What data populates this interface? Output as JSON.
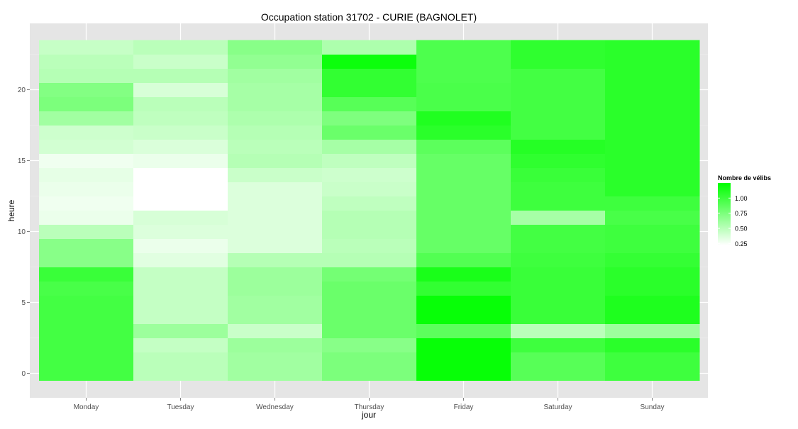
{
  "chart_data": {
    "type": "heatmap",
    "title": "Occupation station 31702 - CURIE (BAGNOLET)",
    "xlabel": "jour",
    "ylabel": "heure",
    "categories": [
      "Monday",
      "Tuesday",
      "Wednesday",
      "Thursday",
      "Friday",
      "Saturday",
      "Sunday"
    ],
    "y": [
      0,
      1,
      2,
      3,
      4,
      5,
      6,
      7,
      8,
      9,
      10,
      11,
      12,
      13,
      14,
      15,
      16,
      17,
      18,
      19,
      20,
      21,
      22,
      23
    ],
    "y_ticks": [
      0,
      5,
      10,
      15,
      20
    ],
    "ylim": [
      -0.5,
      23.5
    ],
    "grid": true,
    "colors": {
      "low": "#ffffff",
      "high": "#00ff00",
      "panel": "#e5e5e5",
      "gridline": "#ffffff"
    },
    "values": [
      [
        0.98,
        0.98,
        0.98,
        0.98,
        0.98,
        0.98,
        0.96,
        1.02,
        0.7,
        0.7,
        0.5,
        0.3,
        0.28,
        0.3,
        0.32,
        0.28,
        0.4,
        0.42,
        0.6,
        0.75,
        0.72,
        0.52,
        0.5,
        0.45
      ],
      [
        0.5,
        0.5,
        0.46,
        0.62,
        0.46,
        0.46,
        0.46,
        0.46,
        0.34,
        0.3,
        0.36,
        0.38,
        0.22,
        0.22,
        0.22,
        0.3,
        0.37,
        0.44,
        0.48,
        0.5,
        0.38,
        0.52,
        0.44,
        0.5
      ],
      [
        0.6,
        0.6,
        0.62,
        0.44,
        0.6,
        0.6,
        0.62,
        0.62,
        0.52,
        0.36,
        0.36,
        0.36,
        0.36,
        0.36,
        0.44,
        0.52,
        0.5,
        0.52,
        0.55,
        0.58,
        0.58,
        0.6,
        0.66,
        0.7
      ],
      [
        0.75,
        0.75,
        0.7,
        0.82,
        0.82,
        0.82,
        0.82,
        0.78,
        0.52,
        0.5,
        0.52,
        0.52,
        0.48,
        0.44,
        0.42,
        0.48,
        0.58,
        0.82,
        0.74,
        0.9,
        1.05,
        1.05,
        1.2,
        0.55
      ],
      [
        1.22,
        1.22,
        1.22,
        0.88,
        1.22,
        1.22,
        1.05,
        1.15,
        0.92,
        0.84,
        0.84,
        0.84,
        0.84,
        0.84,
        0.84,
        0.84,
        0.88,
        1.08,
        1.12,
        0.95,
        0.95,
        0.94,
        0.94,
        0.94
      ],
      [
        0.9,
        0.9,
        1.0,
        0.5,
        1.02,
        1.02,
        1.02,
        1.02,
        1.0,
        0.98,
        0.98,
        0.58,
        1.0,
        1.0,
        1.02,
        1.06,
        1.1,
        0.98,
        0.98,
        0.98,
        0.98,
        0.98,
        1.06,
        1.06
      ],
      [
        1.0,
        1.0,
        1.08,
        0.62,
        1.13,
        1.13,
        1.08,
        1.08,
        1.04,
        1.0,
        1.0,
        0.96,
        1.0,
        1.08,
        1.08,
        1.08,
        1.08,
        1.08,
        1.08,
        1.08,
        1.08,
        1.08,
        1.08,
        1.08
      ]
    ],
    "legend": {
      "title": "Nombre de vélibs",
      "position": "right",
      "breaks": [
        1.0,
        0.75,
        0.5,
        0.25
      ],
      "labels": [
        "1.00",
        "0.75",
        "0.50",
        "0.25"
      ],
      "range": [
        0.22,
        1.25
      ]
    }
  }
}
